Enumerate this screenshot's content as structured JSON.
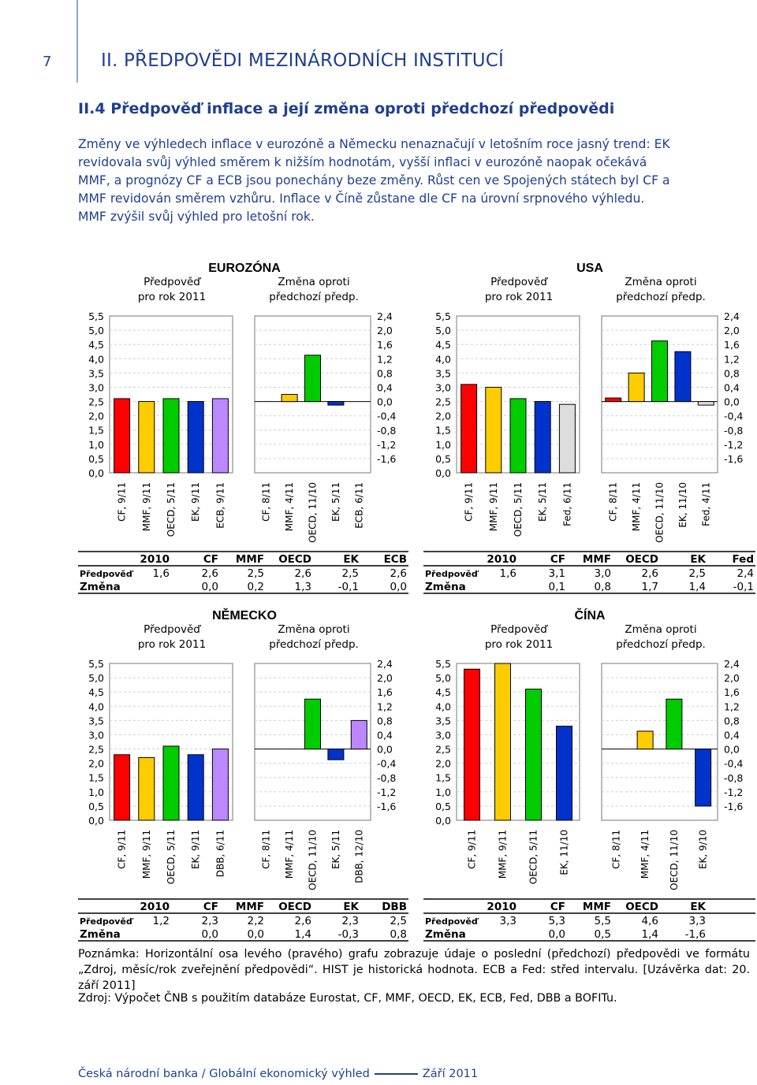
{
  "page_number": "7",
  "section_title": "II. PŘEDPOVĚDI MEZINÁRODNÍCH INSTITUCÍ",
  "subsection_title": "II.4 Předpověď inflace a její změna oproti předchozí předpovědi",
  "paragraph_lines": [
    "Změny ve výhledech inflace v eurozóně a Německu nenaznačují v letošním roce jasný trend: EK",
    "revidovala svůj výhled směrem k nižším hodnotám, vyšší inflaci v eurozóně naopak očekává",
    "MMF, a prognózy CF a ECB jsou ponechány beze změny. Růst cen ve Spojených státech byl CF a",
    "MMF revidován směrem vzhůru.  Inflace v Číně zůstane dle CF na úrovní srpnového výhledu.",
    "MMF zvýšil svůj výhled pro letošní rok."
  ],
  "forecast_header": [
    "Předpověď",
    "pro rok 2011"
  ],
  "change_header": [
    "Změna oproti",
    "předchozí předp."
  ],
  "left_ticks": [
    "5,5",
    "5,0",
    "4,5",
    "4,0",
    "3,5",
    "3,0",
    "2,5",
    "2,0",
    "1,5",
    "1,0",
    "0,5",
    "0,0"
  ],
  "right_ticks": [
    "2,4",
    "2,0",
    "1,6",
    "1,2",
    "0,8",
    "0,4",
    "0,0",
    "-0,4",
    "-0,8",
    "-1,2",
    "-1,6"
  ],
  "colors": {
    "CF": "#ff0000",
    "MMF": "#ffcc00",
    "OECD": "#00cc00",
    "EK": "#0033cc",
    "ECB": "#bb88ff",
    "Fed": "#dddddd",
    "DBB": "#bb88ff",
    "text_blue": "#1f3f8f"
  },
  "chart_data": [
    {
      "type": "bar",
      "title": "EUROZÓNA",
      "forecast": {
        "categories": [
          "CF, 9/11",
          "MMF, 9/11",
          "OECD, 5/11",
          "EK, 9/11",
          "ECB, 9/11"
        ],
        "keys": [
          "CF",
          "MMF",
          "OECD",
          "EK",
          "ECB"
        ],
        "values": [
          2.6,
          2.5,
          2.6,
          2.5,
          2.6
        ],
        "ylim": [
          0,
          5.5
        ]
      },
      "change": {
        "categories": [
          "CF, 8/11",
          "MMF, 4/11",
          "OECD, 11/10",
          "EK, 5/11",
          "ECB, 6/11"
        ],
        "keys": [
          "CF",
          "MMF",
          "OECD",
          "EK",
          "ECB"
        ],
        "values": [
          0.0,
          0.2,
          1.3,
          -0.1,
          0.0
        ],
        "ylim": [
          -1.6,
          2.4
        ]
      },
      "table": {
        "header": [
          "2010",
          "CF",
          "MMF",
          "OECD",
          "EK",
          "ECB"
        ],
        "forecast_label": "Předpověď",
        "forecast_row": [
          "1,6",
          "2,6",
          "2,5",
          "2,6",
          "2,5",
          "2,6"
        ],
        "change_label": "Změna",
        "change_row": [
          "",
          "0,0",
          "0,2",
          "1,3",
          "-0,1",
          "0,0"
        ]
      }
    },
    {
      "type": "bar",
      "title": "USA",
      "forecast": {
        "categories": [
          "CF, 9/11",
          "MMF, 9/11",
          "OECD, 5/11",
          "EK, 5/11",
          "Fed, 6/11"
        ],
        "keys": [
          "CF",
          "MMF",
          "OECD",
          "EK",
          "Fed"
        ],
        "values": [
          3.1,
          3.0,
          2.6,
          2.5,
          2.4
        ],
        "ylim": [
          0,
          5.5
        ]
      },
      "change": {
        "categories": [
          "CF, 8/11",
          "MMF, 4/11",
          "OECD, 11/10",
          "EK, 11/10",
          "Fed, 4/11"
        ],
        "keys": [
          "CF",
          "MMF",
          "OECD",
          "EK",
          "Fed"
        ],
        "values": [
          0.1,
          0.8,
          1.7,
          1.4,
          -0.1
        ],
        "ylim": [
          -1.6,
          2.4
        ]
      },
      "table": {
        "header": [
          "2010",
          "CF",
          "MMF",
          "OECD",
          "EK",
          "Fed"
        ],
        "forecast_label": "Předpověď",
        "forecast_row": [
          "1,6",
          "3,1",
          "3,0",
          "2,6",
          "2,5",
          "2,4"
        ],
        "change_label": "Změna",
        "change_row": [
          "",
          "0,1",
          "0,8",
          "1,7",
          "1,4",
          "-0,1"
        ]
      }
    },
    {
      "type": "bar",
      "title": "NĚMECKO",
      "forecast": {
        "categories": [
          "CF, 9/11",
          "MMF, 9/11",
          "OECD, 5/11",
          "EK, 9/11",
          "DBB, 6/11"
        ],
        "keys": [
          "CF",
          "MMF",
          "OECD",
          "EK",
          "DBB"
        ],
        "values": [
          2.3,
          2.2,
          2.6,
          2.3,
          2.5
        ],
        "ylim": [
          0,
          5.5
        ]
      },
      "change": {
        "categories": [
          "CF, 8/11",
          "MMF, 4/11",
          "OECD, 11/10",
          "EK, 5/11",
          "DBB, 12/10"
        ],
        "keys": [
          "CF",
          "MMF",
          "OECD",
          "EK",
          "DBB"
        ],
        "values": [
          0.0,
          0.0,
          1.4,
          -0.3,
          0.8
        ],
        "ylim": [
          -1.6,
          2.4
        ]
      },
      "table": {
        "header": [
          "2010",
          "CF",
          "MMF",
          "OECD",
          "EK",
          "DBB"
        ],
        "forecast_label": "Předpověď",
        "forecast_row": [
          "1,2",
          "2,3",
          "2,2",
          "2,6",
          "2,3",
          "2,5"
        ],
        "change_label": "Změna",
        "change_row": [
          "",
          "0,0",
          "0,0",
          "1,4",
          "-0,3",
          "0,8"
        ]
      }
    },
    {
      "type": "bar",
      "title": "ČÍNA",
      "forecast": {
        "categories": [
          "CF, 9/11",
          "MMF, 9/11",
          "OECD, 5/11",
          "EK, 11/10"
        ],
        "keys": [
          "CF",
          "MMF",
          "OECD",
          "EK"
        ],
        "values": [
          5.3,
          5.5,
          4.6,
          3.3
        ],
        "ylim": [
          0,
          5.5
        ]
      },
      "change": {
        "categories": [
          "CF, 8/11",
          "MMF, 4/11",
          "OECD, 11/10",
          "EK, 9/10"
        ],
        "keys": [
          "CF",
          "MMF",
          "OECD",
          "EK"
        ],
        "values": [
          0.0,
          0.5,
          1.4,
          -1.6
        ],
        "ylim": [
          -1.6,
          2.4
        ]
      },
      "table": {
        "header": [
          "2010",
          "CF",
          "MMF",
          "OECD",
          "EK"
        ],
        "forecast_label": "Předpověď",
        "forecast_row": [
          "3,3",
          "5,3",
          "5,5",
          "4,6",
          "3,3"
        ],
        "change_label": "Změna",
        "change_row": [
          "",
          "0,0",
          "0,5",
          "1,4",
          "-1,6"
        ]
      }
    }
  ],
  "note": "Poznámka: Horizontální osa levého (pravého) grafu zobrazuje údaje o poslední (předchozí) předpovědi ve formátu „Zdroj, měsíc/rok zveřejnění předpovědi“. HIST je historická hodnota. ECB a Fed: střed intervalu. [Uzávěrka dat: 20. září 2011]",
  "source": "Zdroj: Výpočet ČNB s použitím databáze Eurostat, CF, MMF, OECD, EK, ECB, Fed, DBB a BOFITu.",
  "footer": {
    "left": "Česká národní banka / Globální ekonomický výhled",
    "right": "Září 2011"
  }
}
